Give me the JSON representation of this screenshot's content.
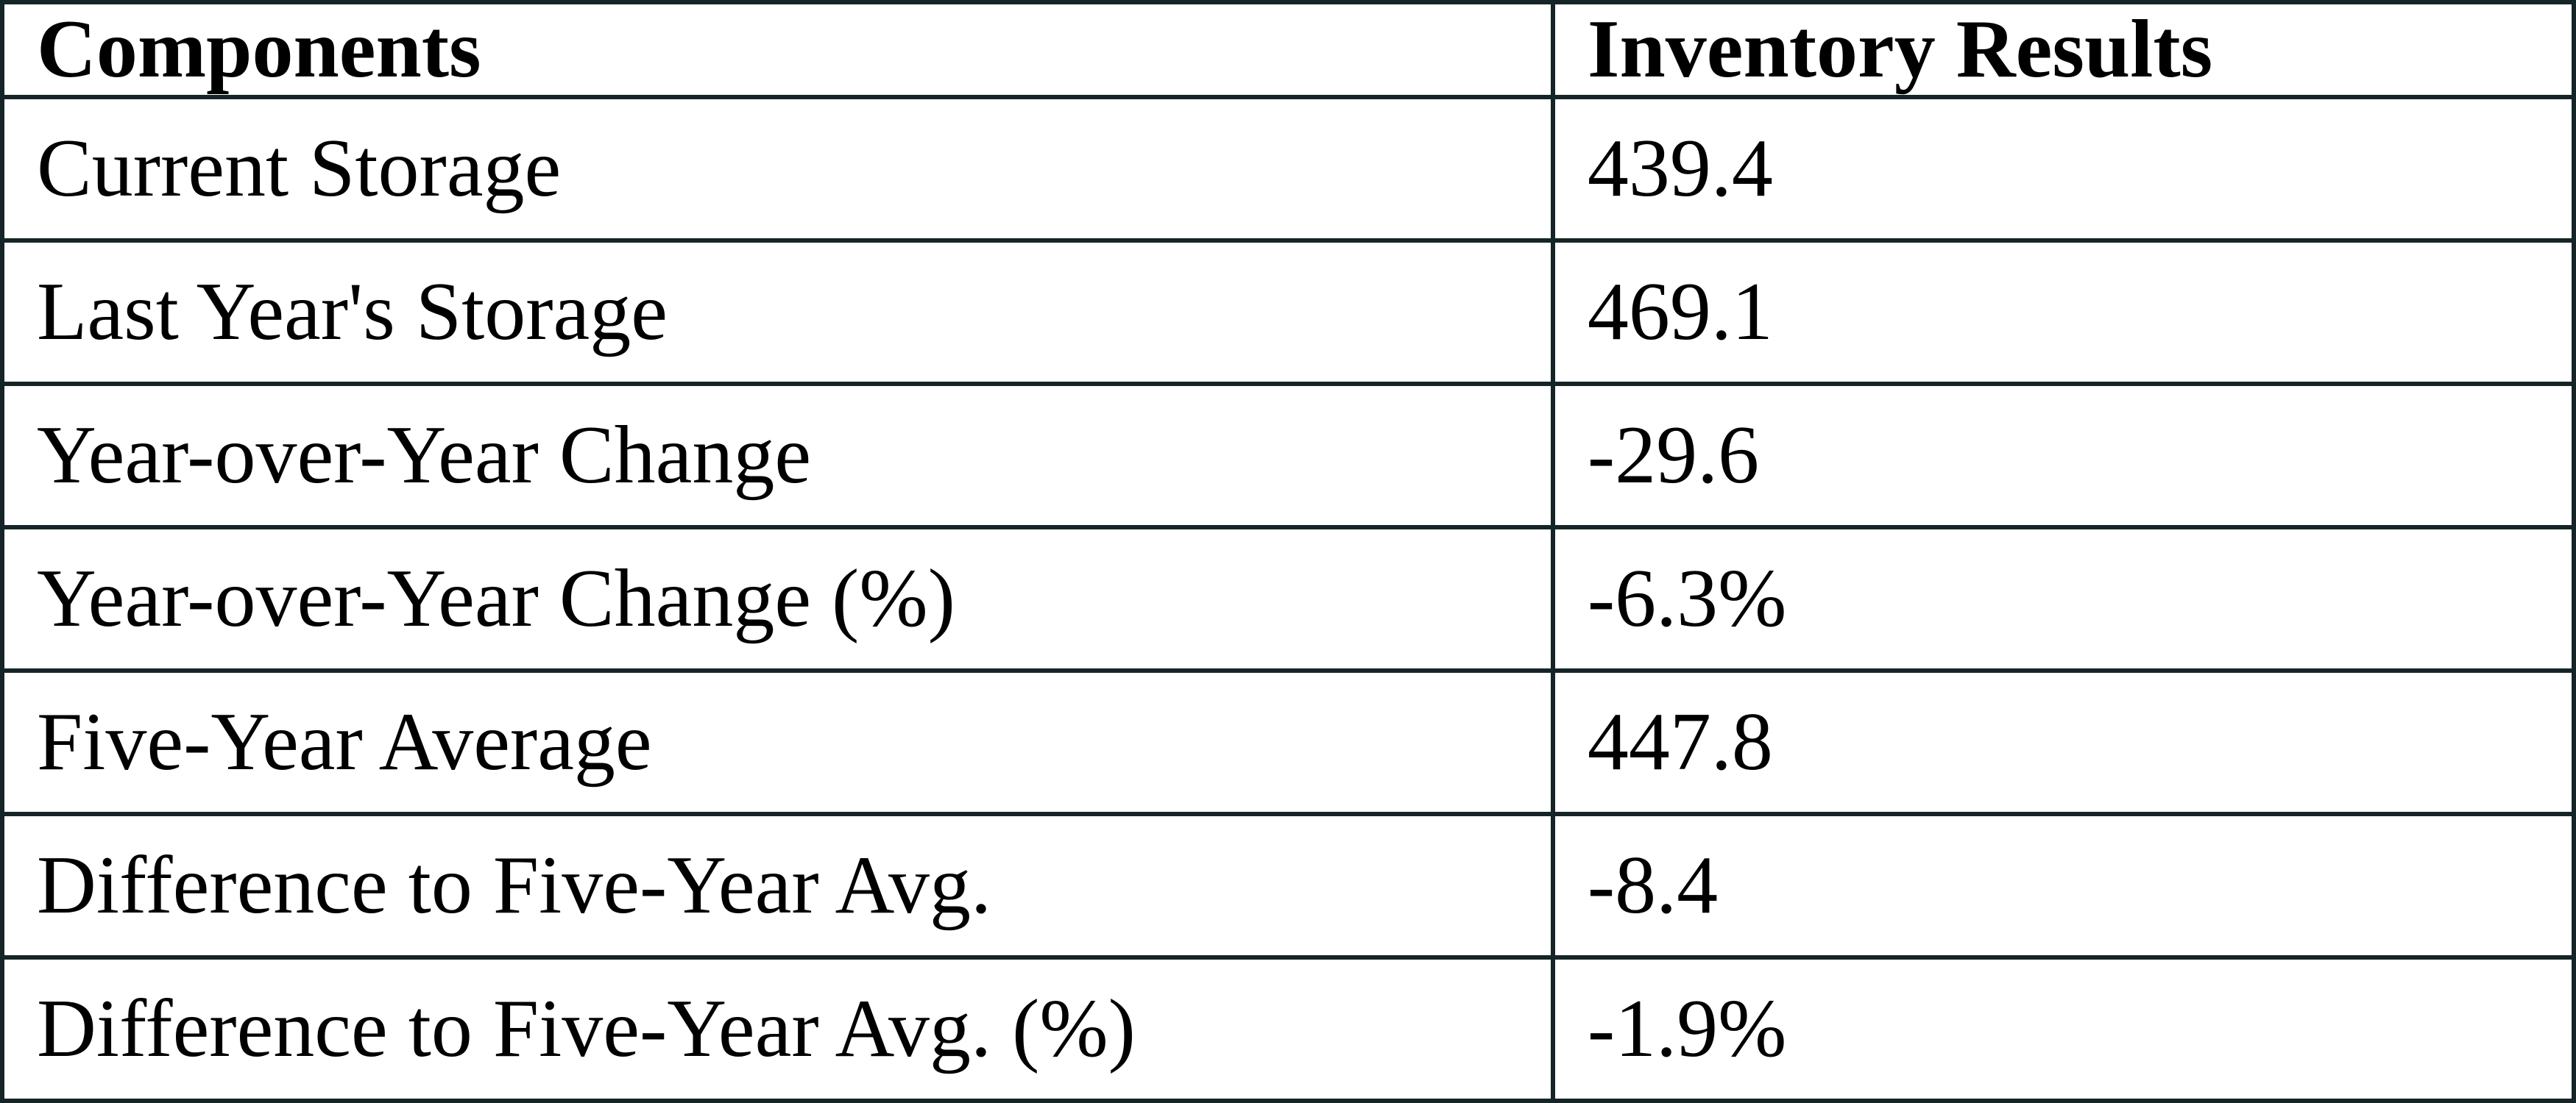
{
  "table": {
    "columns": [
      "Components",
      "Inventory Results"
    ],
    "rows": [
      {
        "component": "Current Storage",
        "result": "439.4"
      },
      {
        "component": "Last Year's Storage",
        "result": "469.1"
      },
      {
        "component": "Year-over-Year Change",
        "result": "-29.6"
      },
      {
        "component": "Year-over-Year Change (%)",
        "result": "-6.3%"
      },
      {
        "component": "Five-Year Average",
        "result": "447.8"
      },
      {
        "component": "Difference to Five-Year Avg.",
        "result": "-8.4"
      },
      {
        "component": "Difference to Five-Year Avg. (%)",
        "result": "-1.9%"
      }
    ]
  },
  "chart_data": {
    "type": "table",
    "title": "",
    "columns": [
      "Components",
      "Inventory Results"
    ],
    "rows": [
      [
        "Current Storage",
        "439.4"
      ],
      [
        "Last Year's Storage",
        "469.1"
      ],
      [
        "Year-over-Year Change",
        "-29.6"
      ],
      [
        "Year-over-Year Change (%)",
        "-6.3%"
      ],
      [
        "Five-Year Average",
        "447.8"
      ],
      [
        "Difference to Five-Year Avg.",
        "-8.4"
      ],
      [
        "Difference to Five-Year Avg. (%)",
        "-1.9%"
      ]
    ],
    "numeric_values": {
      "current_storage": 439.4,
      "last_year_storage": 469.1,
      "yoy_change": -29.6,
      "yoy_change_pct": -6.3,
      "five_year_average": 447.8,
      "diff_to_five_year_avg": -8.4,
      "diff_to_five_year_avg_pct": -1.9
    }
  },
  "colors": {
    "border": "#152527",
    "background": "#ffffff",
    "text": "#000000"
  }
}
